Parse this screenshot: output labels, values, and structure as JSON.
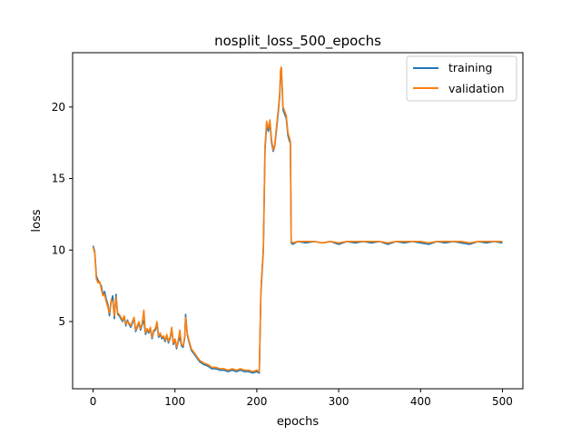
{
  "chart_data": {
    "type": "line",
    "title": "nosplit_loss_500_epochs",
    "xlabel": "epochs",
    "ylabel": "loss",
    "xlim": [
      -25,
      525
    ],
    "ylim": [
      0.3,
      23.8
    ],
    "xticks": [
      0,
      100,
      200,
      300,
      400,
      500
    ],
    "yticks": [
      5,
      10,
      15,
      20
    ],
    "grid": false,
    "legend_position": "top-right",
    "series": [
      {
        "name": "training",
        "color": "#1f77b4",
        "x": [
          0,
          2,
          4,
          6,
          8,
          10,
          12,
          14,
          16,
          18,
          20,
          22,
          24,
          26,
          28,
          30,
          32,
          34,
          36,
          38,
          40,
          42,
          44,
          46,
          48,
          50,
          52,
          54,
          56,
          58,
          60,
          62,
          64,
          66,
          68,
          70,
          72,
          74,
          76,
          78,
          80,
          82,
          84,
          86,
          88,
          90,
          92,
          94,
          96,
          98,
          100,
          102,
          104,
          106,
          108,
          110,
          112,
          113,
          115,
          117,
          120,
          125,
          130,
          135,
          140,
          145,
          150,
          155,
          160,
          165,
          170,
          175,
          180,
          185,
          190,
          195,
          200,
          203,
          205,
          208,
          210,
          212,
          214,
          216,
          218,
          220,
          222,
          224,
          226,
          228,
          229,
          230,
          232,
          234,
          236,
          238,
          240,
          241,
          242,
          244,
          250,
          260,
          270,
          280,
          290,
          300,
          310,
          320,
          330,
          340,
          350,
          360,
          370,
          380,
          390,
          400,
          410,
          420,
          430,
          440,
          450,
          460,
          470,
          480,
          490,
          500
        ],
        "y": [
          10.3,
          9.9,
          8.2,
          7.9,
          7.7,
          7.5,
          6.9,
          7.1,
          6.6,
          6.2,
          5.4,
          6.4,
          6.8,
          5.2,
          6.9,
          5.5,
          5.4,
          5.2,
          5.0,
          5.3,
          4.7,
          5.1,
          4.8,
          4.6,
          4.9,
          5.2,
          4.3,
          4.6,
          4.9,
          4.4,
          4.8,
          5.1,
          4.1,
          4.4,
          4.2,
          4.5,
          3.8,
          4.3,
          4.4,
          4.8,
          3.9,
          4.1,
          3.8,
          3.9,
          3.6,
          4.0,
          3.5,
          3.8,
          4.5,
          3.4,
          3.7,
          3.1,
          3.6,
          3.9,
          3.3,
          3.2,
          3.9,
          5.5,
          4.1,
          3.6,
          3.0,
          2.6,
          2.2,
          2.0,
          1.9,
          1.7,
          1.7,
          1.6,
          1.6,
          1.5,
          1.6,
          1.5,
          1.6,
          1.5,
          1.5,
          1.4,
          1.5,
          1.4,
          7.0,
          10.0,
          17.0,
          18.8,
          18.3,
          18.9,
          17.5,
          16.9,
          17.3,
          18.4,
          19.5,
          20.8,
          22.5,
          22.7,
          19.8,
          19.5,
          19.2,
          18.0,
          17.6,
          17.5,
          10.5,
          10.4,
          10.6,
          10.5,
          10.6,
          10.5,
          10.6,
          10.4,
          10.6,
          10.5,
          10.6,
          10.5,
          10.6,
          10.4,
          10.6,
          10.5,
          10.6,
          10.5,
          10.4,
          10.6,
          10.5,
          10.6,
          10.5,
          10.4,
          10.6,
          10.5,
          10.6,
          10.5
        ]
      },
      {
        "name": "validation",
        "color": "#ff7f0e",
        "x": [
          0,
          2,
          4,
          6,
          8,
          10,
          12,
          14,
          16,
          18,
          20,
          22,
          24,
          26,
          28,
          30,
          32,
          34,
          36,
          38,
          40,
          42,
          44,
          46,
          48,
          50,
          52,
          54,
          56,
          58,
          60,
          62,
          64,
          66,
          68,
          70,
          72,
          74,
          76,
          78,
          80,
          82,
          84,
          86,
          88,
          90,
          92,
          94,
          96,
          98,
          100,
          102,
          104,
          106,
          108,
          110,
          112,
          113,
          115,
          117,
          120,
          125,
          130,
          135,
          140,
          145,
          150,
          155,
          160,
          165,
          170,
          175,
          180,
          185,
          190,
          195,
          200,
          203,
          205,
          208,
          210,
          212,
          214,
          216,
          218,
          220,
          222,
          224,
          226,
          228,
          229,
          230,
          232,
          234,
          236,
          238,
          240,
          241,
          242,
          244,
          250,
          260,
          270,
          280,
          290,
          300,
          310,
          320,
          330,
          340,
          350,
          360,
          370,
          380,
          390,
          400,
          410,
          420,
          430,
          440,
          450,
          460,
          470,
          480,
          490,
          500
        ],
        "y": [
          10.2,
          9.8,
          8.0,
          7.7,
          7.8,
          7.3,
          6.8,
          6.9,
          6.4,
          6.0,
          5.6,
          6.5,
          6.4,
          5.4,
          6.7,
          5.6,
          5.5,
          5.3,
          5.1,
          5.4,
          4.8,
          5.0,
          4.9,
          4.7,
          5.0,
          5.3,
          4.4,
          4.7,
          5.0,
          4.5,
          4.9,
          5.8,
          4.2,
          4.5,
          4.3,
          4.6,
          3.9,
          4.4,
          4.5,
          5.0,
          4.0,
          4.2,
          3.9,
          4.0,
          3.7,
          4.1,
          3.6,
          3.9,
          4.6,
          3.5,
          3.8,
          3.2,
          3.7,
          4.4,
          3.4,
          3.3,
          4.0,
          5.3,
          4.2,
          3.7,
          3.1,
          2.7,
          2.3,
          2.1,
          2.0,
          1.8,
          1.8,
          1.7,
          1.7,
          1.6,
          1.7,
          1.6,
          1.7,
          1.6,
          1.6,
          1.5,
          1.6,
          1.5,
          7.2,
          10.2,
          17.3,
          19.0,
          18.5,
          19.1,
          17.7,
          17.0,
          17.4,
          18.6,
          19.7,
          21.0,
          22.6,
          22.8,
          20.0,
          19.7,
          19.4,
          18.2,
          17.8,
          17.6,
          10.6,
          10.5,
          10.6,
          10.6,
          10.6,
          10.5,
          10.6,
          10.5,
          10.6,
          10.6,
          10.6,
          10.6,
          10.6,
          10.5,
          10.6,
          10.6,
          10.6,
          10.6,
          10.5,
          10.6,
          10.6,
          10.6,
          10.6,
          10.5,
          10.6,
          10.6,
          10.6,
          10.6
        ]
      }
    ]
  }
}
